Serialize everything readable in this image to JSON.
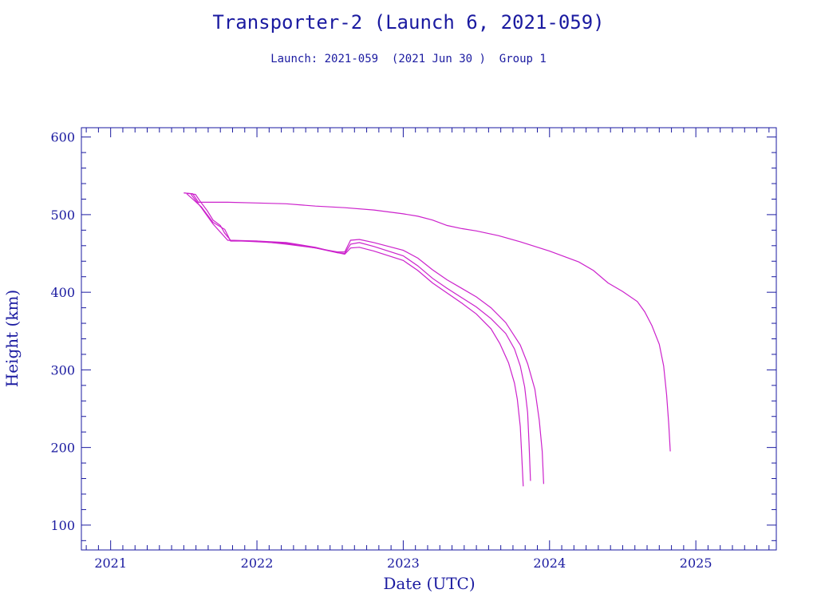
{
  "chart_data": {
    "type": "line",
    "title": "Transporter-2 (Launch 6, 2021-059)",
    "subtitle": "Launch: 2021-059  (2021 Jun 30 )  Group 1",
    "xlabel": "Date (UTC)",
    "ylabel": "Height (km)",
    "xlim": [
      2020.8,
      2025.55
    ],
    "ylim": [
      68,
      612
    ],
    "x_ticks": [
      2021,
      2022,
      2023,
      2024,
      2025
    ],
    "x_tick_labels": [
      "2021",
      "2022",
      "2023",
      "2024",
      "2025"
    ],
    "y_ticks": [
      100,
      200,
      300,
      400,
      500,
      600
    ],
    "y_tick_labels": [
      "100",
      "200",
      "300",
      "400",
      "500",
      "600"
    ],
    "grid": false,
    "colors": {
      "axis": "#1a1aa0",
      "series": "#cc22cc"
    },
    "series": [
      {
        "x": [
          2021.5,
          2021.56,
          2021.6,
          2021.8,
          2022.0,
          2022.2,
          2022.4,
          2022.6,
          2022.8,
          2023.0,
          2023.1,
          2023.2,
          2023.3,
          2023.4,
          2023.5,
          2023.65,
          2023.8,
          2024.0,
          2024.2,
          2024.3,
          2024.4,
          2024.5,
          2024.6,
          2024.65,
          2024.7,
          2024.75,
          2024.78,
          2024.8,
          2024.815,
          2024.825
        ],
        "y": [
          528,
          527,
          516,
          516,
          515,
          514,
          511,
          509,
          506,
          501,
          498,
          493,
          486,
          482,
          479,
          473,
          465,
          453,
          439,
          428,
          412,
          401,
          388,
          375,
          357,
          333,
          305,
          268,
          230,
          195
        ]
      },
      {
        "x": [
          2021.5,
          2021.58,
          2021.62,
          2021.66,
          2021.7,
          2021.75,
          2021.78,
          2021.82,
          2022.0,
          2022.2,
          2022.4,
          2022.55,
          2022.6,
          2022.64,
          2022.7,
          2022.8,
          2023.0,
          2023.1,
          2023.2,
          2023.3,
          2023.4,
          2023.5,
          2023.6,
          2023.66,
          2023.72,
          2023.76,
          2023.78,
          2023.8,
          2023.81,
          2023.82
        ],
        "y": [
          528,
          526,
          515,
          505,
          493,
          486,
          476,
          467,
          466,
          464,
          458,
          451,
          449,
          457,
          458,
          453,
          441,
          428,
          412,
          399,
          386,
          372,
          353,
          334,
          309,
          283,
          262,
          227,
          190,
          150
        ]
      },
      {
        "x": [
          2021.52,
          2021.62,
          2021.7,
          2021.78,
          2021.82,
          2022.0,
          2022.2,
          2022.4,
          2022.55,
          2022.6,
          2022.64,
          2022.7,
          2022.8,
          2023.0,
          2023.1,
          2023.2,
          2023.3,
          2023.4,
          2023.5,
          2023.6,
          2023.7,
          2023.76,
          2023.8,
          2023.83,
          2023.85,
          2023.86,
          2023.87
        ],
        "y": [
          527,
          510,
          490,
          481,
          466,
          466,
          462,
          457,
          451,
          450,
          462,
          464,
          459,
          447,
          434,
          418,
          405,
          393,
          381,
          366,
          347,
          327,
          305,
          278,
          245,
          205,
          157
        ]
      },
      {
        "x": [
          2021.55,
          2021.62,
          2021.7,
          2021.8,
          2022.0,
          2022.2,
          2022.4,
          2022.55,
          2022.6,
          2022.64,
          2022.7,
          2022.8,
          2023.0,
          2023.1,
          2023.2,
          2023.3,
          2023.4,
          2023.5,
          2023.6,
          2023.7,
          2023.8,
          2023.85,
          2023.9,
          2023.93,
          2023.95,
          2023.96
        ],
        "y": [
          526,
          509,
          488,
          467,
          465,
          463,
          457,
          452,
          452,
          467,
          468,
          464,
          454,
          444,
          429,
          416,
          405,
          394,
          380,
          361,
          332,
          308,
          275,
          235,
          195,
          153
        ]
      }
    ]
  }
}
